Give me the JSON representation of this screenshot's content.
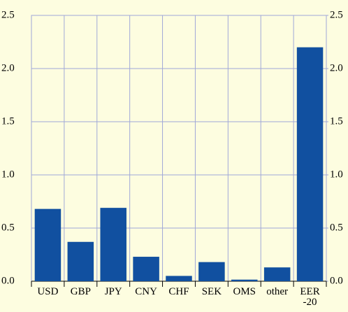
{
  "chart_data": {
    "type": "bar",
    "categories": [
      "USD",
      "GBP",
      "JPY",
      "CNY",
      "CHF",
      "SEK",
      "OMS",
      "other",
      "EER -20"
    ],
    "values": [
      0.68,
      0.37,
      0.69,
      0.23,
      0.05,
      0.18,
      0.015,
      0.13,
      2.2
    ],
    "color": "#1150a0",
    "ylim": [
      0,
      2.5
    ],
    "yticks": [
      {
        "value": 0,
        "label": "0.0"
      },
      0.5,
      {
        "value": 1,
        "label": "1.0"
      },
      1.5,
      {
        "value": 2,
        "label": "2.0"
      },
      2.5
    ],
    "y2lim": [
      0,
      2.5
    ],
    "y2ticks": [
      {
        "value": 0,
        "label": "0.0"
      },
      0.5,
      {
        "value": 1,
        "label": "1.0"
      },
      1.5,
      {
        "value": 2,
        "label": "2.0"
      },
      2.5
    ],
    "grid": true
  }
}
